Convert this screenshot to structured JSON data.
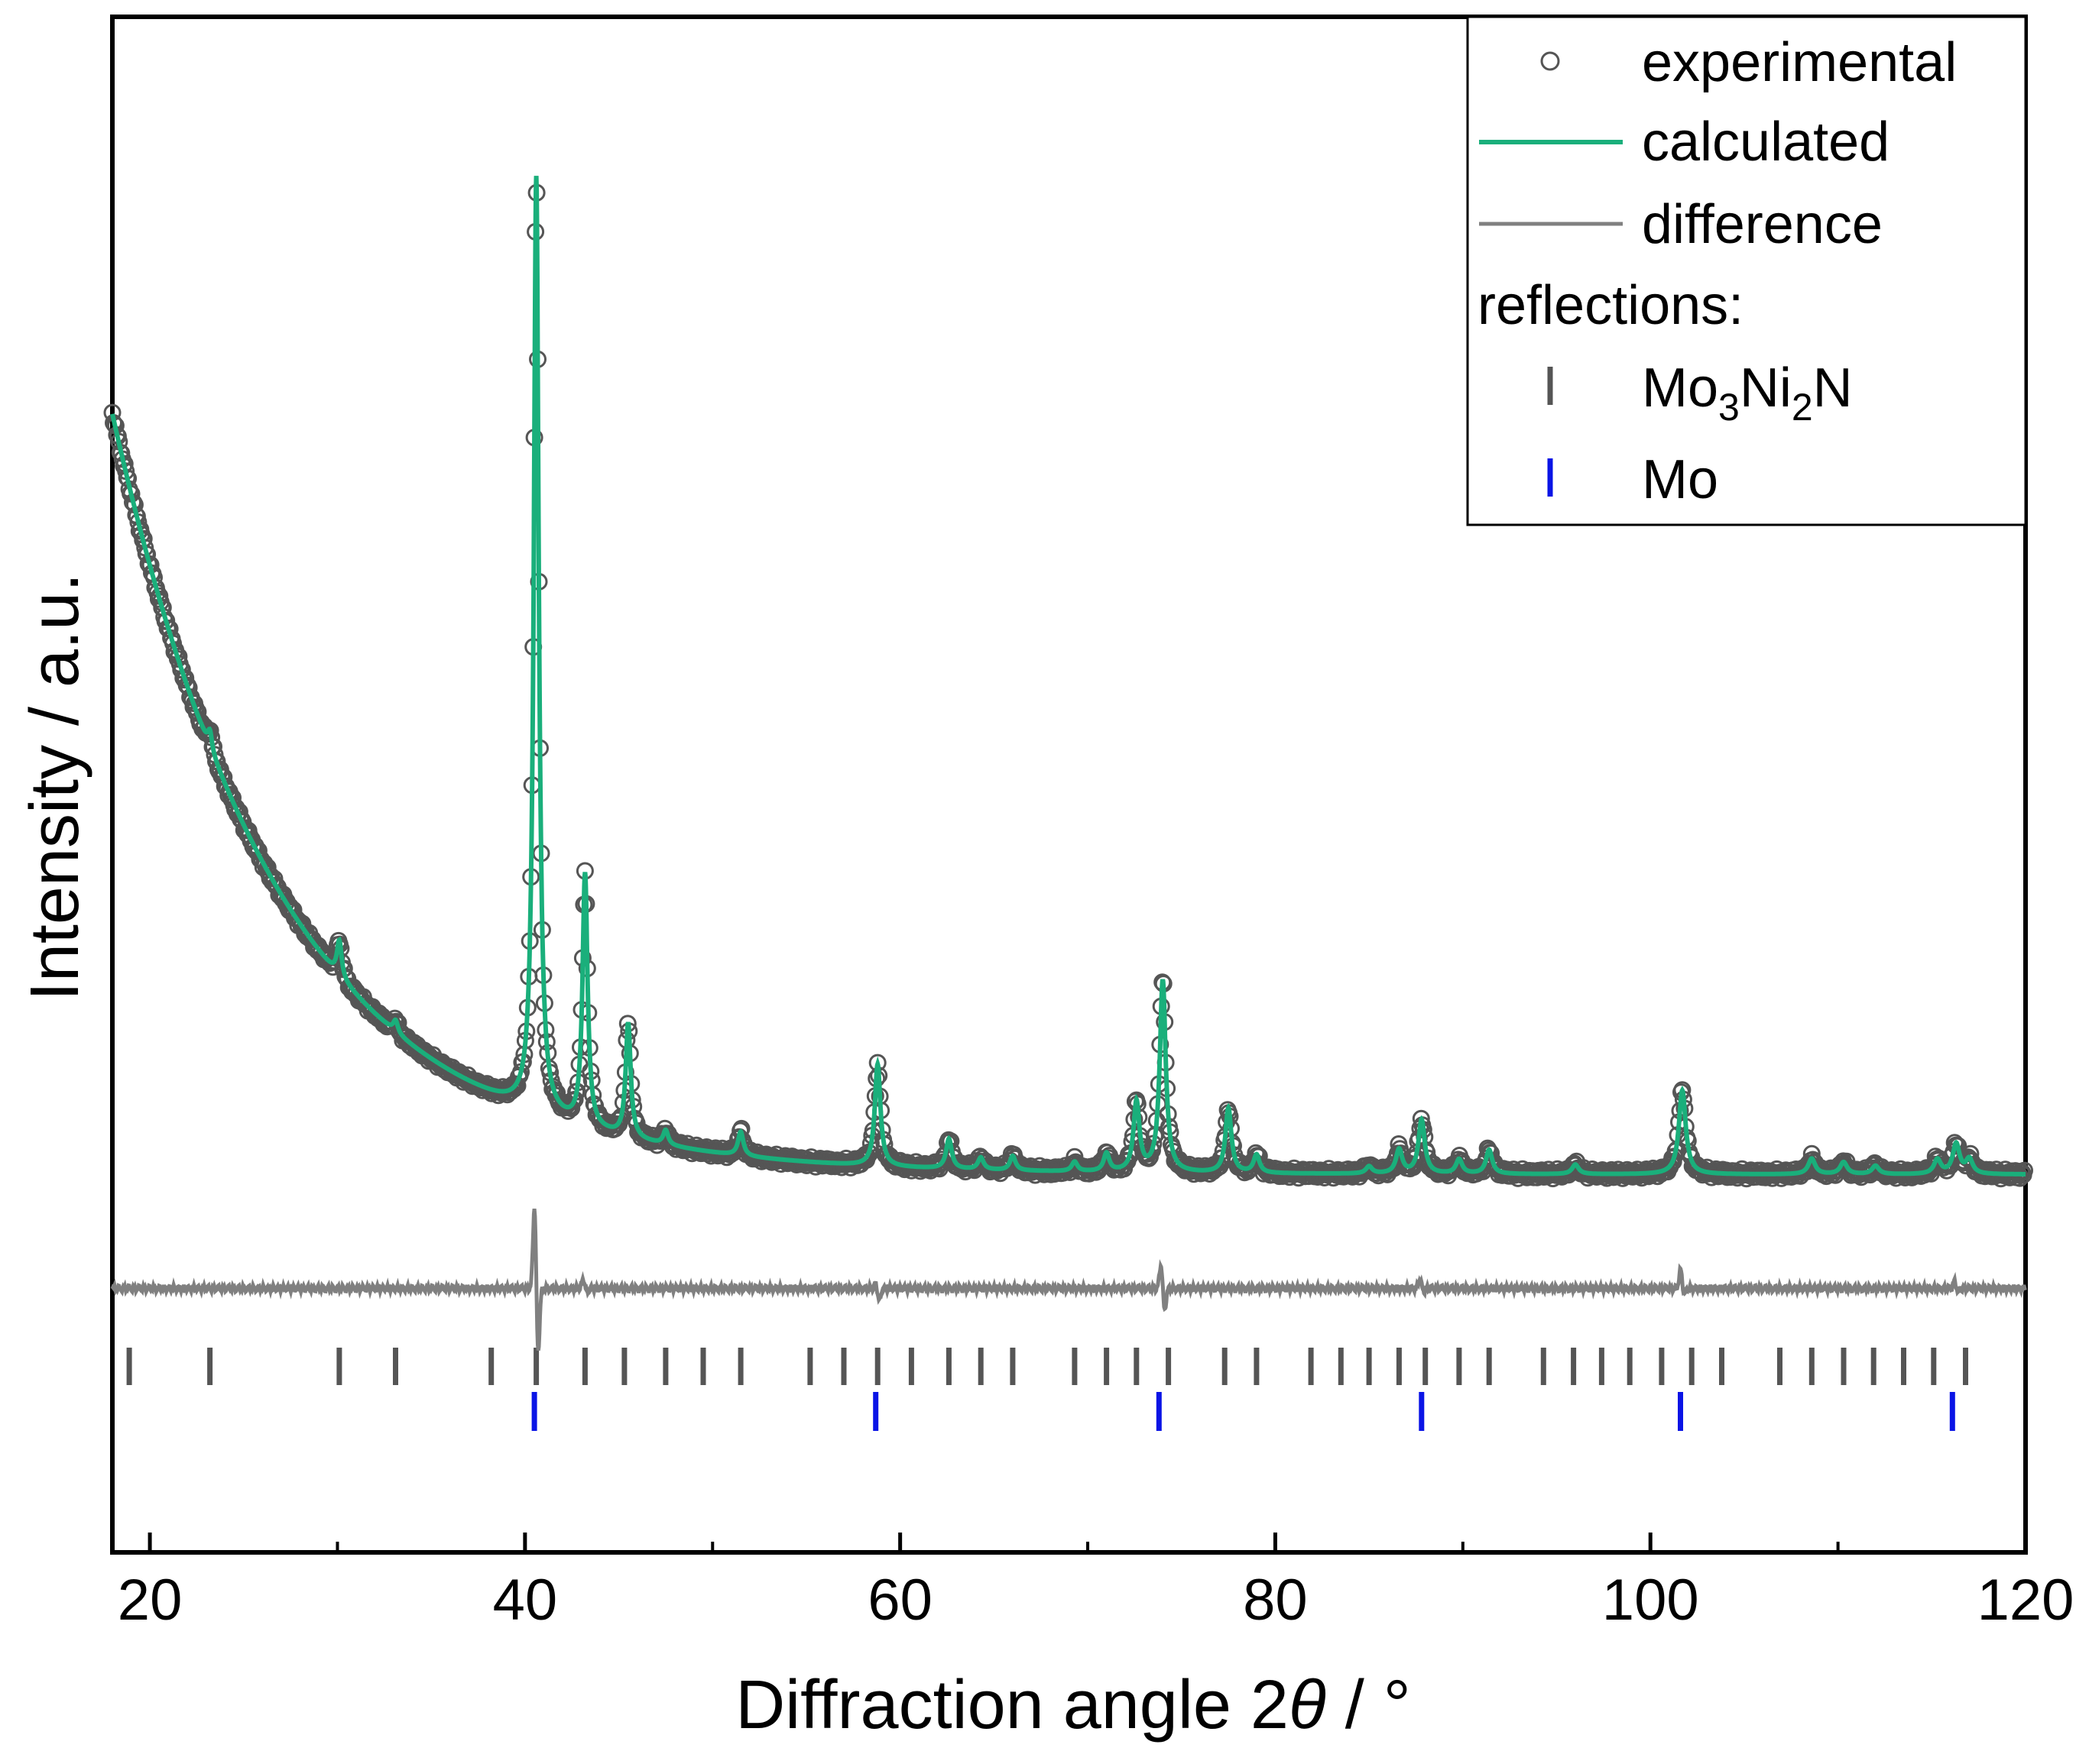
{
  "chart_data": {
    "type": "line",
    "title": "",
    "xlabel": "Diffraction angle 2θ / °",
    "xlabel_parts": {
      "prefix": "Diffraction angle 2",
      "theta": "θ",
      "suffix": " / °"
    },
    "ylabel": "Intensity / a.u.",
    "xlim": [
      18,
      120
    ],
    "ylim": [
      -0.26,
      1.02
    ],
    "x_ticks": [
      20,
      40,
      60,
      80,
      100,
      120
    ],
    "x_tick_labels": [
      "20",
      "40",
      "60",
      "80",
      "100",
      "120"
    ],
    "x_minor_ticks": [
      30,
      50,
      70,
      90,
      110
    ],
    "y_tick_labels": [],
    "grid": false,
    "legend_position": "top-right",
    "legend": {
      "experimental": "experimental",
      "calculated": "calculated",
      "difference": "difference",
      "reflections_header": "reflections:",
      "phase1": {
        "main": "Mo",
        "sub1": "3",
        "mid": "Ni",
        "sub2": "2",
        "end": "N"
      },
      "phase2": "Mo"
    },
    "background": {
      "a": 0.055,
      "b": 0.62,
      "decay": 9.0,
      "offset": 18.2
    },
    "peaks": [
      {
        "x": 23.2,
        "h": 0.015,
        "w": 0.14
      },
      {
        "x": 30.1,
        "h": 0.03,
        "w": 0.15
      },
      {
        "x": 33.1,
        "h": 0.01,
        "w": 0.15
      },
      {
        "x": 40.6,
        "h": 0.78,
        "w": 0.16
      },
      {
        "x": 43.2,
        "h": 0.21,
        "w": 0.16
      },
      {
        "x": 45.5,
        "h": 0.095,
        "w": 0.16
      },
      {
        "x": 47.5,
        "h": 0.012,
        "w": 0.16
      },
      {
        "x": 51.5,
        "h": 0.02,
        "w": 0.17
      },
      {
        "x": 58.8,
        "h": 0.085,
        "w": 0.18
      },
      {
        "x": 62.6,
        "h": 0.025,
        "w": 0.18
      },
      {
        "x": 64.3,
        "h": 0.01,
        "w": 0.18
      },
      {
        "x": 66.0,
        "h": 0.012,
        "w": 0.18
      },
      {
        "x": 69.3,
        "h": 0.008,
        "w": 0.18
      },
      {
        "x": 71.0,
        "h": 0.015,
        "w": 0.18
      },
      {
        "x": 72.6,
        "h": 0.058,
        "w": 0.19
      },
      {
        "x": 74.0,
        "h": 0.16,
        "w": 0.19
      },
      {
        "x": 77.5,
        "h": 0.054,
        "w": 0.19
      },
      {
        "x": 79.0,
        "h": 0.015,
        "w": 0.19
      },
      {
        "x": 85.0,
        "h": 0.006,
        "w": 0.2
      },
      {
        "x": 86.6,
        "h": 0.02,
        "w": 0.2
      },
      {
        "x": 87.8,
        "h": 0.045,
        "w": 0.2
      },
      {
        "x": 89.8,
        "h": 0.012,
        "w": 0.2
      },
      {
        "x": 91.4,
        "h": 0.02,
        "w": 0.2
      },
      {
        "x": 96.0,
        "h": 0.008,
        "w": 0.21
      },
      {
        "x": 101.7,
        "h": 0.07,
        "w": 0.22
      },
      {
        "x": 108.6,
        "h": 0.013,
        "w": 0.22
      },
      {
        "x": 110.3,
        "h": 0.01,
        "w": 0.22
      },
      {
        "x": 112.0,
        "h": 0.007,
        "w": 0.22
      },
      {
        "x": 115.3,
        "h": 0.012,
        "w": 0.22
      },
      {
        "x": 116.3,
        "h": 0.025,
        "w": 0.22
      },
      {
        "x": 117.0,
        "h": 0.012,
        "w": 0.22
      }
    ],
    "difference_baseline": -0.04,
    "difference_features": [
      {
        "x": 40.6,
        "pos": 0.075,
        "neg": 0.06
      },
      {
        "x": 43.2,
        "pos": 0.008,
        "neg": 0.004
      },
      {
        "x": 58.8,
        "pos": 0.004,
        "neg": 0.01
      },
      {
        "x": 74.0,
        "pos": 0.022,
        "neg": 0.02
      },
      {
        "x": 87.8,
        "pos": 0.008,
        "neg": 0.003
      },
      {
        "x": 101.7,
        "pos": 0.016,
        "neg": 0.006
      },
      {
        "x": 116.3,
        "pos": 0.006,
        "neg": 0.003
      }
    ],
    "reflections_mo3ni2n": [
      18.9,
      23.2,
      30.1,
      33.1,
      38.2,
      40.6,
      43.2,
      45.3,
      47.5,
      49.5,
      51.5,
      55.2,
      57.0,
      58.8,
      60.6,
      62.6,
      64.3,
      66.0,
      69.3,
      71.0,
      72.6,
      74.3,
      77.3,
      79.0,
      81.9,
      83.5,
      85.0,
      86.6,
      88.0,
      89.8,
      91.4,
      94.3,
      95.9,
      97.4,
      98.9,
      100.6,
      102.2,
      103.8,
      106.9,
      108.6,
      110.3,
      111.9,
      113.5,
      115.1,
      116.8
    ],
    "reflections_mo": [
      40.5,
      58.7,
      73.8,
      87.8,
      101.6,
      116.1
    ],
    "colors": {
      "experimental": "#555555",
      "calculated": "#1aaf7b",
      "difference": "#808080",
      "reflections_mo3ni2n": "#555555",
      "reflections_mo": "#0a14e6",
      "axes": "#000000"
    }
  }
}
